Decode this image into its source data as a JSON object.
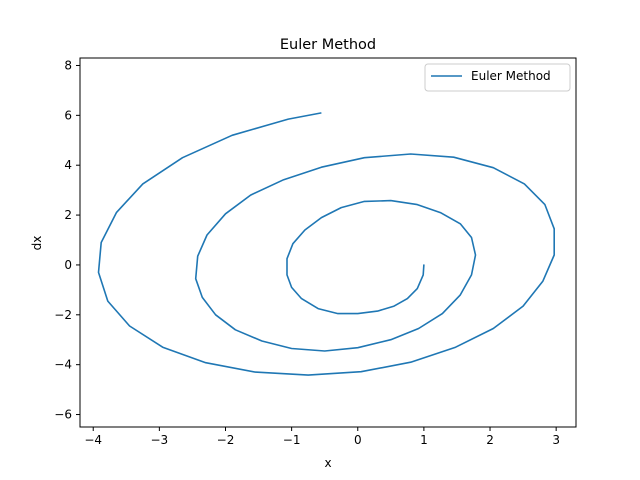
{
  "chart_data": {
    "type": "line",
    "title": "Euler Method",
    "xlabel": "x",
    "ylabel": "dx",
    "xlim": [
      -4.2,
      3.3
    ],
    "ylim": [
      -6.5,
      8.3
    ],
    "xticks": [
      -4,
      -3,
      -2,
      -1,
      0,
      1,
      2,
      3
    ],
    "yticks": [
      -6,
      -4,
      -2,
      0,
      2,
      4,
      6,
      8
    ],
    "grid": false,
    "legend": "top-right",
    "series": [
      {
        "name": "Euler Method",
        "color": "#1f77b4",
        "x": [
          1.0,
          1.0,
          0.99,
          0.95,
          0.88,
          0.77,
          0.62,
          0.44,
          0.24,
          0.03,
          -0.19,
          -0.41,
          -0.61,
          -0.79,
          -0.93,
          -1.03,
          -1.08,
          -1.09,
          -1.05,
          -0.96,
          -0.82,
          -0.64,
          -0.42,
          -0.17,
          0.12,
          0.42,
          0.73,
          1.03,
          1.31,
          1.55,
          1.74,
          1.87,
          1.94,
          1.93,
          1.85,
          1.7,
          1.48,
          1.2,
          0.88,
          0.52,
          0.13,
          -0.27,
          -0.67,
          -1.06,
          -1.43,
          -1.75,
          -2.01,
          -2.19,
          -2.29,
          -2.28,
          -2.17,
          -1.96,
          -1.64,
          -1.23,
          -0.74,
          -0.18,
          0.42,
          1.04,
          1.66,
          2.19,
          2.63,
          2.88,
          2.95,
          2.93,
          2.76,
          2.47,
          2.07,
          1.57,
          0.98,
          0.32,
          -0.39,
          -1.13,
          -1.85,
          -2.52,
          -3.09,
          -3.51,
          -3.75,
          -3.88,
          -3.87,
          -3.67,
          -3.35,
          -2.91,
          -2.35,
          -1.71,
          -0.97,
          -0.55
        ],
        "y": [
          0.0,
          -0.35,
          -0.67,
          -0.97,
          -1.23,
          -1.45,
          -1.63,
          -1.77,
          -1.86,
          -1.91,
          -1.91,
          -1.85,
          -1.73,
          -1.56,
          -1.33,
          -1.04,
          -0.71,
          -0.34,
          0.05,
          0.45,
          0.84,
          1.21,
          1.55,
          1.85,
          2.08,
          2.24,
          2.32,
          2.31,
          2.21,
          2.02,
          1.75,
          1.41,
          1.0,
          0.55,
          0.07,
          -0.42,
          -0.91,
          -1.38,
          -1.81,
          -2.18,
          -2.48,
          -2.68,
          -2.79,
          -2.78,
          -2.67,
          -2.44,
          -2.12,
          -1.71,
          -1.23,
          -0.7,
          -0.14,
          0.43,
          0.98,
          1.5,
          1.94,
          2.3,
          2.54,
          2.66,
          2.63,
          2.46,
          2.15,
          1.69,
          1.12,
          0.47,
          -0.22,
          -0.92,
          -1.6,
          -2.22,
          -2.75,
          -3.16,
          -3.43,
          -3.54,
          -3.48,
          -3.25,
          -2.86,
          -2.32,
          -1.66,
          -0.91,
          -0.1,
          0.71,
          1.49,
          2.21,
          2.83,
          3.33,
          3.68,
          3.81
        ],
        "points": [
          [
            1.0,
            0.02
          ],
          [
            0.99,
            -0.4
          ],
          [
            0.9,
            -0.95
          ],
          [
            0.75,
            -1.35
          ],
          [
            0.55,
            -1.65
          ],
          [
            0.3,
            -1.85
          ],
          [
            0.0,
            -1.95
          ],
          [
            -0.3,
            -1.95
          ],
          [
            -0.6,
            -1.75
          ],
          [
            -0.85,
            -1.35
          ],
          [
            -1.0,
            -0.9
          ],
          [
            -1.07,
            -0.4
          ],
          [
            -1.07,
            0.25
          ],
          [
            -0.98,
            0.85
          ],
          [
            -0.8,
            1.4
          ],
          [
            -0.55,
            1.9
          ],
          [
            -0.25,
            2.3
          ],
          [
            0.1,
            2.55
          ],
          [
            0.5,
            2.58
          ],
          [
            0.9,
            2.42
          ],
          [
            1.25,
            2.1
          ],
          [
            1.55,
            1.65
          ],
          [
            1.72,
            1.1
          ],
          [
            1.78,
            0.4
          ],
          [
            1.72,
            -0.4
          ],
          [
            1.55,
            -1.2
          ],
          [
            1.28,
            -1.95
          ],
          [
            0.92,
            -2.55
          ],
          [
            0.5,
            -3.0
          ],
          [
            0.0,
            -3.32
          ],
          [
            -0.5,
            -3.45
          ],
          [
            -1.0,
            -3.35
          ],
          [
            -1.45,
            -3.05
          ],
          [
            -1.85,
            -2.6
          ],
          [
            -2.15,
            -2.0
          ],
          [
            -2.35,
            -1.3
          ],
          [
            -2.45,
            -0.55
          ],
          [
            -2.42,
            0.35
          ],
          [
            -2.28,
            1.2
          ],
          [
            -2.0,
            2.05
          ],
          [
            -1.62,
            2.8
          ],
          [
            -1.12,
            3.42
          ],
          [
            -0.55,
            3.92
          ],
          [
            0.1,
            4.3
          ],
          [
            0.8,
            4.45
          ],
          [
            1.45,
            4.32
          ],
          [
            2.05,
            3.9
          ],
          [
            2.52,
            3.25
          ],
          [
            2.83,
            2.42
          ],
          [
            2.97,
            1.45
          ],
          [
            2.97,
            0.4
          ],
          [
            2.8,
            -0.65
          ],
          [
            2.5,
            -1.65
          ],
          [
            2.05,
            -2.55
          ],
          [
            1.48,
            -3.3
          ],
          [
            0.8,
            -3.9
          ],
          [
            0.05,
            -4.28
          ],
          [
            -0.75,
            -4.42
          ],
          [
            -1.55,
            -4.3
          ],
          [
            -2.3,
            -3.92
          ],
          [
            -2.95,
            -3.3
          ],
          [
            -3.45,
            -2.45
          ],
          [
            -3.78,
            -1.45
          ],
          [
            -3.92,
            -0.3
          ],
          [
            -3.88,
            0.9
          ],
          [
            -3.65,
            2.1
          ],
          [
            -3.25,
            3.25
          ],
          [
            -2.65,
            4.3
          ],
          [
            -1.9,
            5.2
          ],
          [
            -1.05,
            5.85
          ],
          [
            -0.55,
            6.1
          ]
        ]
      }
    ]
  }
}
